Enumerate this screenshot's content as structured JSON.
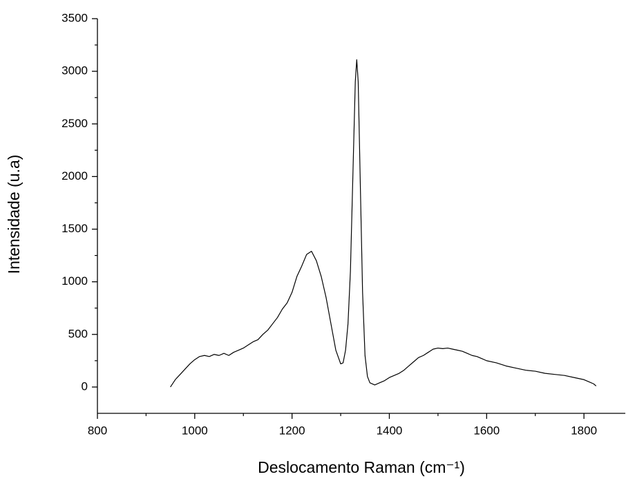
{
  "chart_data": {
    "type": "line",
    "x_label": "Deslocamento Raman (cm⁻¹)",
    "y_label": "Intensidade (u.a)",
    "x": [
      950,
      960,
      970,
      980,
      990,
      1000,
      1010,
      1020,
      1030,
      1040,
      1050,
      1060,
      1070,
      1080,
      1090,
      1100,
      1110,
      1120,
      1130,
      1140,
      1150,
      1160,
      1170,
      1180,
      1190,
      1200,
      1210,
      1220,
      1230,
      1240,
      1250,
      1260,
      1270,
      1280,
      1290,
      1300,
      1305,
      1310,
      1315,
      1320,
      1325,
      1330,
      1333,
      1336,
      1340,
      1345,
      1350,
      1355,
      1360,
      1370,
      1380,
      1390,
      1400,
      1410,
      1420,
      1430,
      1440,
      1450,
      1460,
      1470,
      1480,
      1490,
      1500,
      1510,
      1520,
      1530,
      1540,
      1550,
      1560,
      1570,
      1580,
      1590,
      1600,
      1620,
      1640,
      1660,
      1680,
      1700,
      1720,
      1740,
      1760,
      1780,
      1800,
      1810,
      1820,
      1825
    ],
    "series": [
      {
        "color": "#000000",
        "values": [
          0,
          70,
          120,
          170,
          220,
          260,
          290,
          300,
          290,
          310,
          300,
          320,
          300,
          330,
          350,
          370,
          400,
          430,
          450,
          500,
          540,
          600,
          660,
          740,
          800,
          900,
          1050,
          1150,
          1260,
          1290,
          1200,
          1050,
          850,
          600,
          350,
          220,
          230,
          350,
          600,
          1100,
          2000,
          2900,
          3110,
          2900,
          2000,
          900,
          300,
          100,
          40,
          20,
          40,
          60,
          90,
          110,
          130,
          160,
          200,
          240,
          280,
          300,
          330,
          360,
          370,
          365,
          370,
          360,
          350,
          340,
          320,
          300,
          290,
          270,
          250,
          230,
          200,
          180,
          160,
          150,
          130,
          120,
          110,
          90,
          70,
          50,
          30,
          10
        ]
      }
    ],
    "xlim": [
      800,
      1885
    ],
    "xticks": [
      800,
      1000,
      1200,
      1400,
      1600,
      1800
    ],
    "ylim": [
      -250,
      3500
    ],
    "yticks": [
      0,
      500,
      1000,
      1500,
      2000,
      2500,
      3000,
      3500
    ]
  }
}
